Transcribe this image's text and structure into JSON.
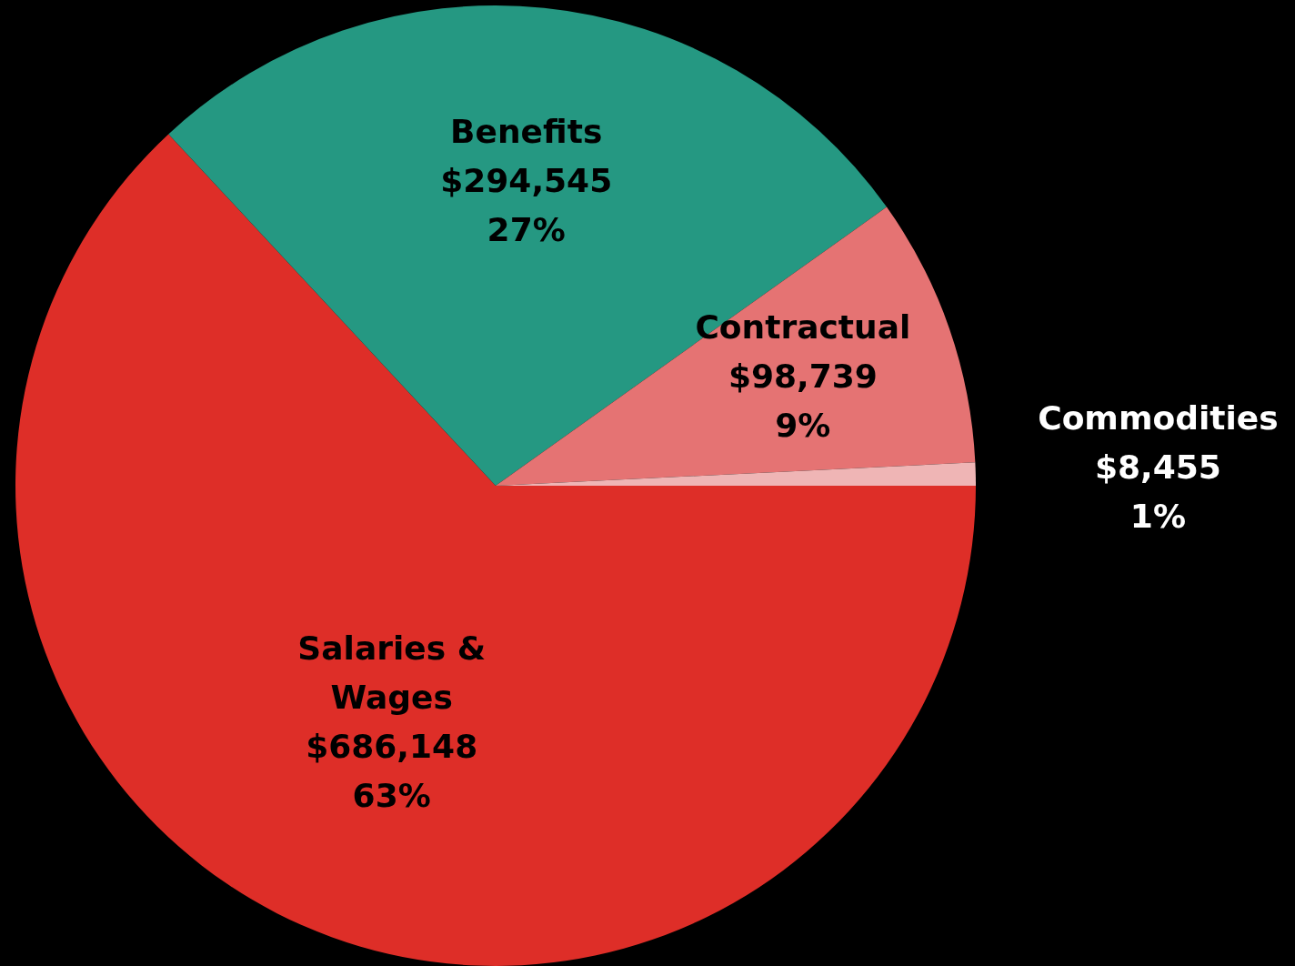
{
  "chart_data": {
    "type": "pie",
    "categories": [
      "Salaries & Wages",
      "Benefits",
      "Contractual",
      "Commodities"
    ],
    "values": [
      686148,
      294545,
      98739,
      8455
    ],
    "colors": [
      "#de2e28",
      "#259882",
      "#e57373",
      "#efb5b5"
    ],
    "value_labels": [
      "$686,148 63%",
      "$294,545 27%",
      "$98,739 9%",
      "$8,455 1%"
    ],
    "legend": false
  }
}
